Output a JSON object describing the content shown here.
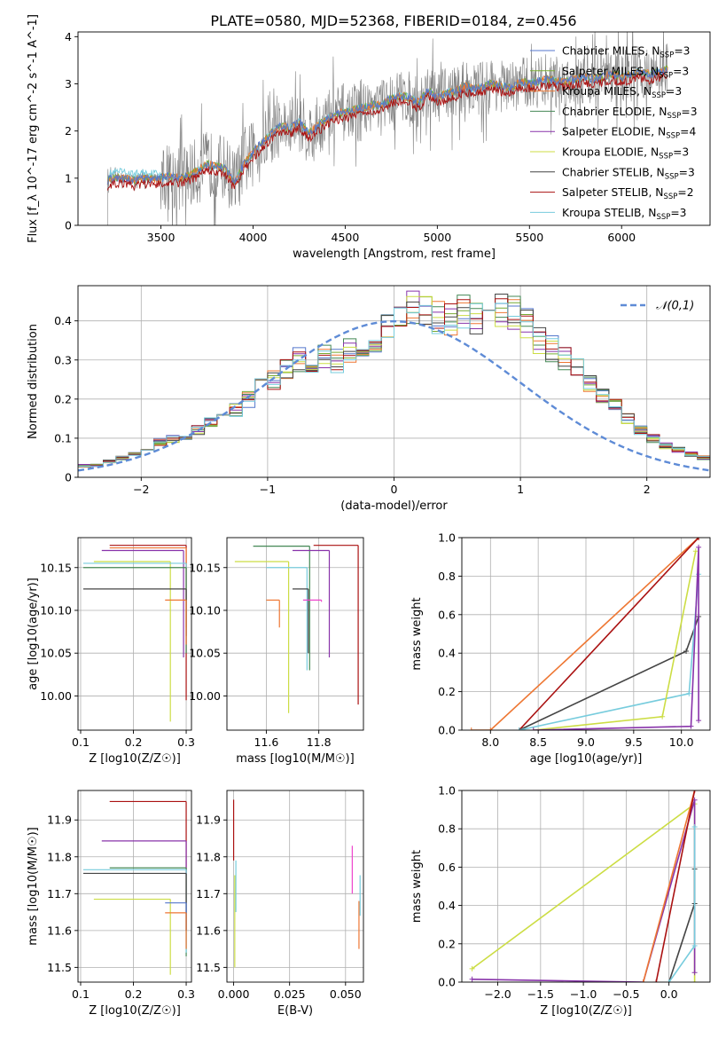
{
  "title": "PLATE=0580, MJD=52368, FIBERID=0184, z=0.456",
  "colors": {
    "chabrier_miles": "#5577cc",
    "salpeter_miles": "#77aa33",
    "kroupa_miles": "#ee7733",
    "chabrier_elodie": "#448855",
    "salpeter_elodie": "#8833aa",
    "kroupa_elodie": "#ccdd44",
    "chabrier_stelib": "#444444",
    "salpeter_stelib": "#aa1111",
    "kroupa_stelib": "#77ccdd",
    "data_gray": "#808080",
    "normal_curve": "#5e8bd6",
    "grid": "#b0b0b0"
  },
  "chart_data": [
    {
      "id": "spectrum",
      "type": "line",
      "title": "PLATE=0580, MJD=52368, FIBERID=0184, z=0.456",
      "xlabel": "wavelength [Angstrom, rest frame]",
      "ylabel": "Flux [f_λ 10^-17 erg cm^-2 s^-1 A^-1]",
      "xlim": [
        3050,
        6480
      ],
      "ylim": [
        0,
        4.1
      ],
      "xticks": [
        3500,
        4000,
        4500,
        5000,
        5500,
        6000
      ],
      "yticks": [
        0,
        1,
        2,
        3,
        4
      ],
      "grid": false,
      "legend_position": "top-right",
      "legend": [
        {
          "label": "Chabrier MILES, N",
          "sub": "SSP",
          "tail": "=3",
          "color": "#5577cc"
        },
        {
          "label": "Salpeter MILES, N",
          "sub": "SSP",
          "tail": "=3",
          "color": "#77aa33"
        },
        {
          "label": "Kroupa MILES, N",
          "sub": "SSP",
          "tail": "=3",
          "color": "#ee7733"
        },
        {
          "label": "Chabrier ELODIE, N",
          "sub": "SSP",
          "tail": "=3",
          "color": "#448855"
        },
        {
          "label": "Salpeter ELODIE, N",
          "sub": "SSP",
          "tail": "=4",
          "color": "#8833aa"
        },
        {
          "label": "Kroupa ELODIE, N",
          "sub": "SSP",
          "tail": "=3",
          "color": "#ccdd44"
        },
        {
          "label": "Chabrier STELIB, N",
          "sub": "SSP",
          "tail": "=3",
          "color": "#444444"
        },
        {
          "label": "Salpeter STELIB, N",
          "sub": "SSP",
          "tail": "=2",
          "color": "#aa1111"
        },
        {
          "label": "Kroupa STELIB, N",
          "sub": "SSP",
          "tail": "=3",
          "color": "#77ccdd"
        }
      ],
      "model_trend": {
        "x": [
          3210,
          3250,
          3300,
          3350,
          3400,
          3450,
          3500,
          3550,
          3600,
          3650,
          3700,
          3750,
          3800,
          3850,
          3900,
          3950,
          4000,
          4050,
          4100,
          4150,
          4200,
          4250,
          4300,
          4350,
          4400,
          4450,
          4500,
          4550,
          4600,
          4650,
          4700,
          4750,
          4800,
          4850,
          4900,
          4950,
          5000,
          5050,
          5100,
          5150,
          5200,
          5250,
          5300,
          5350,
          5400,
          5450,
          5500,
          5550,
          5600,
          5650,
          5700,
          5750,
          5800,
          5850,
          5900,
          5950,
          6000,
          6050,
          6100,
          6150,
          6200,
          6250
        ],
        "y": [
          0.95,
          1.0,
          1.0,
          0.95,
          1.0,
          0.98,
          1.0,
          1.05,
          1.0,
          1.05,
          1.15,
          1.3,
          1.25,
          1.2,
          0.9,
          1.3,
          1.55,
          1.75,
          1.95,
          2.1,
          2.05,
          2.2,
          1.95,
          2.1,
          2.25,
          2.35,
          2.4,
          2.45,
          2.5,
          2.55,
          2.55,
          2.7,
          2.75,
          2.7,
          2.6,
          2.85,
          2.7,
          2.8,
          2.85,
          2.95,
          2.9,
          2.95,
          3.0,
          2.95,
          2.9,
          3.05,
          3.0,
          3.05,
          3.1,
          3.05,
          3.05,
          3.1,
          3.15,
          3.1,
          3.15,
          3.2,
          3.15,
          3.2,
          3.25,
          3.2,
          3.25,
          3.3
        ]
      },
      "data_start_x": 3210,
      "data_end_x": 6250
    },
    {
      "id": "residuals",
      "type": "histogram",
      "xlabel": "(data-model)/error",
      "ylabel": "Normed distribution",
      "xlim": [
        -2.5,
        2.5
      ],
      "ylim": [
        0,
        0.49
      ],
      "xticks": [
        -2,
        -1,
        0,
        1,
        2
      ],
      "yticks": [
        0.0,
        0.1,
        0.2,
        0.3,
        0.4
      ],
      "grid": true,
      "legend_position": "top-right",
      "legend": [
        {
          "label": "𝒩(0,1)",
          "color": "#5e8bd6"
        }
      ],
      "bin_width": 0.1,
      "reference_heights": [
        0.02,
        0.02,
        0.03,
        0.03,
        0.03,
        0.04,
        0.05,
        0.06,
        0.07,
        0.09,
        0.1,
        0.1,
        0.12,
        0.14,
        0.15,
        0.17,
        0.2,
        0.24,
        0.25,
        0.28,
        0.3,
        0.3,
        0.31,
        0.3,
        0.32,
        0.33,
        0.35,
        0.38,
        0.42,
        0.44,
        0.43,
        0.41,
        0.4,
        0.42,
        0.41,
        0.44,
        0.43,
        0.42,
        0.39,
        0.35,
        0.33,
        0.3,
        0.28,
        0.24,
        0.21,
        0.18,
        0.15,
        0.12,
        0.1,
        0.08,
        0.07,
        0.06,
        0.05,
        0.04,
        0.03,
        0.03
      ]
    },
    {
      "id": "age_vs_Z",
      "type": "errorbar",
      "xlabel": "Z [log10(Z/Z☉)]",
      "ylabel": "age [log10(age/yr)]",
      "xlim": [
        0.095,
        0.31
      ],
      "ylim": [
        9.96,
        10.185
      ],
      "xticks": [
        0.1,
        0.2,
        0.3
      ],
      "xtick_labels": [
        "0.1",
        "0.2",
        "0.3"
      ],
      "yticks": [
        10.0,
        10.05,
        10.1,
        10.15
      ],
      "ytick_labels": [
        "10.00",
        "10.05",
        "10.10",
        "10.15"
      ],
      "grid": true,
      "points": [
        {
          "x": 0.3,
          "y": 10.176,
          "x_lo": 0.155,
          "y_lo": 9.995,
          "color": "#aa1111"
        },
        {
          "x": 0.3,
          "y": 10.173,
          "x_lo": 0.155,
          "y_lo": 10.08,
          "color": "#ee7733"
        },
        {
          "x": 0.295,
          "y": 10.17,
          "x_lo": 0.14,
          "y_lo": 10.045,
          "color": "#8833aa"
        },
        {
          "x": 0.27,
          "y": 10.157,
          "x_lo": 0.125,
          "y_lo": 9.97,
          "color": "#ccdd44"
        },
        {
          "x": 0.3,
          "y": 10.155,
          "x_lo": 0.105,
          "y_lo": 10.06,
          "color": "#77ccdd"
        },
        {
          "x": 0.3,
          "y": 10.15,
          "x_lo": 0.105,
          "y_lo": 10.05,
          "color": "#448855"
        },
        {
          "x": 0.3,
          "y": 10.125,
          "x_lo": 0.105,
          "y_lo": 10.07,
          "color": "#444444"
        },
        {
          "x": 0.3,
          "y": 10.112,
          "x_lo": 0.26,
          "y_lo": 10.06,
          "color": "#ee7733"
        }
      ]
    },
    {
      "id": "age_vs_mass",
      "type": "errorbar",
      "xlabel": "mass [log10(M/M☉)]",
      "ylabel": "",
      "xlim": [
        11.45,
        11.97
      ],
      "ylim": [
        9.96,
        10.185
      ],
      "xticks": [
        11.6,
        11.8
      ],
      "xtick_labels": [
        "11.6",
        "11.8"
      ],
      "yticks": [
        10.0,
        10.05,
        10.1,
        10.15
      ],
      "ytick_labels": [
        "10.00",
        "10.05",
        "10.10",
        "10.15"
      ],
      "grid": true,
      "points": [
        {
          "x": 11.95,
          "y": 10.176,
          "x_lo": 11.78,
          "y_lo": 9.99,
          "color": "#aa1111"
        },
        {
          "x": 11.765,
          "y": 10.175,
          "x_lo": 11.55,
          "y_lo": 10.03,
          "color": "#448855"
        },
        {
          "x": 11.84,
          "y": 10.17,
          "x_lo": 11.7,
          "y_lo": 10.045,
          "color": "#8833aa"
        },
        {
          "x": 11.685,
          "y": 10.157,
          "x_lo": 11.48,
          "y_lo": 9.98,
          "color": "#ccdd44"
        },
        {
          "x": 11.755,
          "y": 10.15,
          "x_lo": 11.6,
          "y_lo": 10.03,
          "color": "#77ccdd"
        },
        {
          "x": 11.76,
          "y": 10.125,
          "x_lo": 11.7,
          "y_lo": 10.05,
          "color": "#444444"
        },
        {
          "x": 11.65,
          "y": 10.112,
          "x_lo": 11.6,
          "y_lo": 10.08,
          "color": "#ee7733"
        },
        {
          "x": 11.81,
          "y": 10.112,
          "x_lo": 11.74,
          "y_lo": 10.11,
          "color": "#ee44cc"
        }
      ]
    },
    {
      "id": "mass_weight_vs_age",
      "type": "line",
      "xlabel": "age [log10(age/yr)]",
      "ylabel": "mass weight",
      "xlim": [
        7.7,
        10.3
      ],
      "ylim": [
        0,
        1.0
      ],
      "xticks": [
        8.0,
        8.5,
        9.0,
        9.5,
        10.0
      ],
      "xtick_labels": [
        "8.0",
        "8.5",
        "9.0",
        "9.5",
        "10.0"
      ],
      "yticks": [
        0.0,
        0.2,
        0.4,
        0.6,
        0.8,
        1.0
      ],
      "ytick_labels": [
        "0.0",
        "0.2",
        "0.4",
        "0.6",
        "0.8",
        "1.0"
      ],
      "grid": true,
      "series": [
        {
          "color": "#ee7733",
          "x": [
            7.8,
            8.0,
            10.18
          ],
          "y": [
            0.0,
            0.0,
            1.0
          ]
        },
        {
          "color": "#aa1111",
          "x": [
            8.3,
            10.18
          ],
          "y": [
            0.0,
            1.0
          ]
        },
        {
          "color": "#444444",
          "x": [
            8.3,
            10.05,
            10.18
          ],
          "y": [
            0.0,
            0.41,
            0.59
          ]
        },
        {
          "color": "#77ccdd",
          "x": [
            8.3,
            10.08,
            10.18
          ],
          "y": [
            0.0,
            0.19,
            0.81
          ]
        },
        {
          "color": "#ccdd44",
          "x": [
            8.45,
            9.8,
            10.15
          ],
          "y": [
            0.0,
            0.07,
            0.93
          ]
        },
        {
          "color": "#8833aa",
          "x": [
            8.45,
            10.1,
            10.18,
            10.18
          ],
          "y": [
            0.0,
            0.02,
            0.95,
            0.05
          ]
        }
      ]
    },
    {
      "id": "mass_vs_Z",
      "type": "errorbar",
      "xlabel": "Z [log10(Z/Z☉)]",
      "ylabel": "mass [log10(M/M☉)]",
      "xlim": [
        0.095,
        0.31
      ],
      "ylim": [
        11.46,
        11.98
      ],
      "xticks": [
        0.1,
        0.2,
        0.3
      ],
      "xtick_labels": [
        "0.1",
        "0.2",
        "0.3"
      ],
      "yticks": [
        11.5,
        11.6,
        11.7,
        11.8,
        11.9
      ],
      "ytick_labels": [
        "11.5",
        "11.6",
        "11.7",
        "11.8",
        "11.9"
      ],
      "grid": true,
      "points": [
        {
          "x": 0.3,
          "y": 11.95,
          "x_lo": 0.155,
          "y_lo": 11.6,
          "color": "#aa1111"
        },
        {
          "x": 0.3,
          "y": 11.843,
          "x_lo": 0.14,
          "y_lo": 11.75,
          "color": "#8833aa"
        },
        {
          "x": 0.3,
          "y": 11.77,
          "x_lo": 0.155,
          "y_lo": 11.53,
          "color": "#448855"
        },
        {
          "x": 0.3,
          "y": 11.765,
          "x_lo": 0.105,
          "y_lo": 11.54,
          "color": "#77ccdd"
        },
        {
          "x": 0.3,
          "y": 11.755,
          "x_lo": 0.105,
          "y_lo": 11.6,
          "color": "#444444"
        },
        {
          "x": 0.27,
          "y": 11.685,
          "x_lo": 0.125,
          "y_lo": 11.48,
          "color": "#ccdd44"
        },
        {
          "x": 0.3,
          "y": 11.675,
          "x_lo": 0.26,
          "y_lo": 11.6,
          "color": "#5577cc"
        },
        {
          "x": 0.3,
          "y": 11.648,
          "x_lo": 0.26,
          "y_lo": 11.55,
          "color": "#ee7733"
        }
      ]
    },
    {
      "id": "mass_vs_ebv",
      "type": "errorbar",
      "xlabel": "E(B-V)",
      "ylabel": "",
      "xlim": [
        -0.003,
        0.058
      ],
      "ylim": [
        11.46,
        11.98
      ],
      "xticks": [
        0.0,
        0.025,
        0.05
      ],
      "xtick_labels": [
        "0.000",
        "0.025",
        "0.050"
      ],
      "yticks": [
        11.5,
        11.6,
        11.7,
        11.8,
        11.9
      ],
      "ytick_labels": [
        "11.5",
        "11.6",
        "11.7",
        "11.8",
        "11.9"
      ],
      "grid": true,
      "vsegments": [
        {
          "x": 0.0,
          "y0": 11.79,
          "y1": 11.955,
          "color": "#aa1111"
        },
        {
          "x": 0.0005,
          "y0": 11.5,
          "y1": 11.75,
          "color": "#ccdd44"
        },
        {
          "x": 0.001,
          "y0": 11.65,
          "y1": 11.79,
          "color": "#77ccdd"
        },
        {
          "x": 0.053,
          "y0": 11.7,
          "y1": 11.83,
          "color": "#ee44cc"
        },
        {
          "x": 0.056,
          "y0": 11.55,
          "y1": 11.68,
          "color": "#ee7733"
        },
        {
          "x": 0.0565,
          "y0": 11.64,
          "y1": 11.75,
          "color": "#77ccdd"
        }
      ]
    },
    {
      "id": "mass_weight_vs_Z",
      "type": "line",
      "xlabel": "Z [log10(Z/Z☉)]",
      "ylabel": "mass weight",
      "xlim": [
        -2.42,
        0.48
      ],
      "ylim": [
        0,
        1.0
      ],
      "xticks": [
        -2.0,
        -1.5,
        -1.0,
        -0.5,
        0.0
      ],
      "xtick_labels": [
        "−2.0",
        "−1.5",
        "−1.0",
        "−0.5",
        "0.0"
      ],
      "yticks": [
        0.0,
        0.2,
        0.4,
        0.6,
        0.8,
        1.0
      ],
      "ytick_labels": [
        "0.0",
        "0.2",
        "0.4",
        "0.6",
        "0.8",
        "1.0"
      ],
      "grid": true,
      "series": [
        {
          "color": "#ccdd44",
          "x": [
            -2.3,
            0.3,
            0.3
          ],
          "y": [
            0.07,
            0.93,
            0.0
          ]
        },
        {
          "color": "#8833aa",
          "x": [
            -2.3,
            -0.3,
            0.3,
            0.3
          ],
          "y": [
            0.015,
            0.0,
            0.95,
            0.05
          ]
        },
        {
          "color": "#444444",
          "x": [
            0.0,
            0.3,
            0.3
          ],
          "y": [
            0.0,
            0.41,
            0.59
          ]
        },
        {
          "color": "#77ccdd",
          "x": [
            0.0,
            0.3,
            0.3
          ],
          "y": [
            0.0,
            0.19,
            0.81
          ]
        },
        {
          "color": "#ee7733",
          "x": [
            -0.3,
            0.3
          ],
          "y": [
            0.0,
            1.0
          ]
        },
        {
          "color": "#aa1111",
          "x": [
            -0.15,
            0.3
          ],
          "y": [
            0.0,
            1.0
          ]
        }
      ]
    }
  ]
}
